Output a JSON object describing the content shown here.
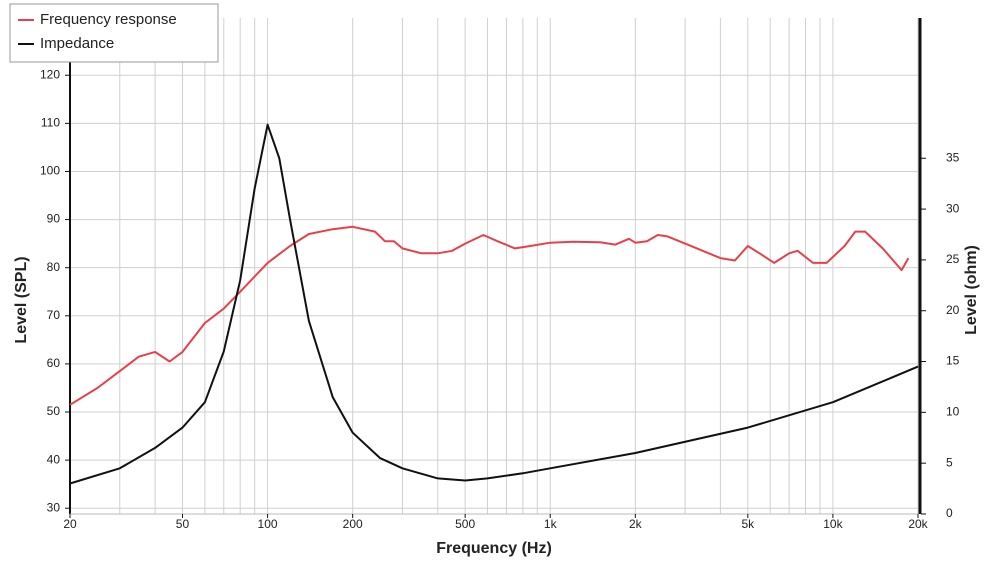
{
  "chart_data": {
    "type": "line",
    "xlabel": "Frequency (Hz)",
    "ylabel": "Level (SPL)",
    "y2label": "Level (ohm)",
    "xscale": "log",
    "xlim": [
      20,
      20000
    ],
    "xticks": [
      20,
      50,
      100,
      200,
      500,
      {
        "value": 1000,
        "label": "1k"
      },
      {
        "value": 2000,
        "label": "2k"
      },
      {
        "value": 5000,
        "label": "5k"
      },
      {
        "value": 10000,
        "label": "10k"
      },
      {
        "value": 20000,
        "label": "20k"
      }
    ],
    "xminorticks": [
      20,
      30,
      40,
      50,
      60,
      70,
      80,
      90,
      100,
      200,
      300,
      400,
      500,
      600,
      700,
      800,
      900,
      1000,
      2000,
      3000,
      4000,
      5000,
      6000,
      7000,
      8000,
      9000,
      10000,
      20000
    ],
    "ylim": [
      28.8,
      131.9
    ],
    "yticks": [
      30,
      40,
      50,
      60,
      70,
      80,
      90,
      100,
      110,
      120
    ],
    "y2lim": [
      0,
      48.8
    ],
    "y2ticks": [
      0,
      5,
      10,
      15,
      20,
      25,
      30,
      35
    ],
    "grid": true,
    "legend": "top-left",
    "series": [
      {
        "name": "Frequency response",
        "color": "#e8404a",
        "x": [
          20,
          25,
          30,
          35,
          40,
          45,
          50,
          60,
          70,
          80,
          100,
          120,
          140,
          170,
          200,
          240,
          260,
          280,
          300,
          350,
          400,
          450,
          500,
          580,
          650,
          750,
          850,
          1000,
          1200,
          1500,
          1700,
          1900,
          2000,
          2200,
          2400,
          2600,
          3000,
          4000,
          4500,
          5000,
          5500,
          6200,
          7000,
          7500,
          8500,
          9500,
          11000,
          12000,
          13000,
          15000,
          17500,
          18500
        ],
        "values": [
          51.5,
          55,
          58.5,
          61.5,
          62.5,
          60.5,
          62.5,
          68.5,
          71.5,
          75,
          81,
          84.5,
          87,
          88,
          88.5,
          87.5,
          85.5,
          85.5,
          84,
          83,
          83,
          83.5,
          85,
          86.8,
          85.5,
          84,
          84.5,
          85.2,
          85.4,
          85.3,
          84.8,
          86,
          85.2,
          85.5,
          86.8,
          86.5,
          85,
          82,
          81.5,
          84.5,
          83,
          81,
          83,
          83.5,
          81,
          81,
          84.5,
          87.5,
          87.5,
          84,
          79.5,
          82
        ]
      },
      {
        "name": "Impedance",
        "color": "#111111",
        "axis": "y2",
        "x": [
          20,
          30,
          40,
          50,
          60,
          70,
          80,
          90,
          100,
          110,
          120,
          140,
          170,
          200,
          250,
          300,
          400,
          500,
          600,
          800,
          1000,
          2000,
          5000,
          10000,
          20000
        ],
        "values": [
          3,
          4.5,
          6.5,
          8.5,
          11,
          16,
          23,
          32,
          38.3,
          35,
          29,
          19,
          11.5,
          8,
          5.5,
          4.5,
          3.5,
          3.3,
          3.5,
          4,
          4.5,
          6,
          8.5,
          11,
          14.5
        ]
      }
    ]
  }
}
